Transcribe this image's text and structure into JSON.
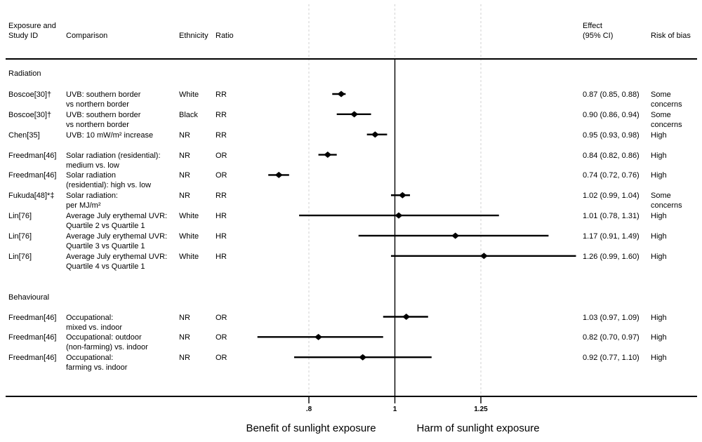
{
  "columns": {
    "study": "Exposure and\nStudy ID",
    "comparison": "Comparison",
    "ethnicity": "Ethnicity",
    "ratio": "Ratio",
    "effect": "Effect\n(95% CI)",
    "bias": "Risk of bias"
  },
  "sections": [
    {
      "name": "Radiation",
      "rows": [
        {
          "study": "Boscoe[30]†",
          "comparison": "UVB: southern border\nvs northern border",
          "ethnicity": "White",
          "ratio": "RR",
          "effect": "0.87 (0.85, 0.88)",
          "bias": "Some\nconcerns",
          "est": 0.87,
          "lo": 0.85,
          "hi": 0.88
        },
        {
          "study": "Boscoe[30]†",
          "comparison": "UVB: southern border\nvs northern border",
          "ethnicity": "Black",
          "ratio": "RR",
          "effect": "0.90 (0.86, 0.94)",
          "bias": "Some\nconcerns",
          "est": 0.9,
          "lo": 0.86,
          "hi": 0.94
        },
        {
          "study": "Chen[35]",
          "comparison": "UVB: 10 mW/m² increase",
          "ethnicity": "NR",
          "ratio": "RR",
          "effect": "0.95 (0.93, 0.98)",
          "bias": "High",
          "est": 0.95,
          "lo": 0.93,
          "hi": 0.98
        },
        {
          "study": "Freedman[46]",
          "comparison": "Solar radiation (residential):\nmedium vs. low",
          "ethnicity": "NR",
          "ratio": "OR",
          "effect": "0.84 (0.82, 0.86)",
          "bias": "High",
          "est": 0.84,
          "lo": 0.82,
          "hi": 0.86
        },
        {
          "study": "Freedman[46]",
          "comparison": "Solar radiation\n(residential): high vs. low",
          "ethnicity": "NR",
          "ratio": "OR",
          "effect": "0.74 (0.72, 0.76)",
          "bias": "High",
          "est": 0.74,
          "lo": 0.72,
          "hi": 0.76
        },
        {
          "study": "Fukuda[48]*‡",
          "comparison": "Solar radiation:\nper MJ/m²",
          "ethnicity": "NR",
          "ratio": "RR",
          "effect": "1.02 (0.99, 1.04)",
          "bias": "Some\nconcerns",
          "est": 1.02,
          "lo": 0.99,
          "hi": 1.04
        },
        {
          "study": "Lin[76]",
          "comparison": "Average July erythemal UVR:\nQuartile 2 vs Quartile 1",
          "ethnicity": "White",
          "ratio": "HR",
          "effect": "1.01 (0.78, 1.31)",
          "bias": "High",
          "est": 1.01,
          "lo": 0.78,
          "hi": 1.31
        },
        {
          "study": "Lin[76]",
          "comparison": "Average July erythemal UVR:\nQuartile 3 vs Quartile 1",
          "ethnicity": "White",
          "ratio": "HR",
          "effect": "1.17 (0.91, 1.49)",
          "bias": "High",
          "est": 1.17,
          "lo": 0.91,
          "hi": 1.49
        },
        {
          "study": "Lin[76]",
          "comparison": "Average July erythemal UVR:\nQuartile 4 vs Quartile 1",
          "ethnicity": "White",
          "ratio": "HR",
          "effect": "1.26 (0.99, 1.60)",
          "bias": "High",
          "est": 1.26,
          "lo": 0.99,
          "hi": 1.6
        }
      ]
    },
    {
      "name": "Behavioural",
      "rows": [
        {
          "study": "Freedman[46]",
          "comparison": "Occupational:\nmixed vs. indoor",
          "ethnicity": "NR",
          "ratio": "OR",
          "effect": "1.03 (0.97, 1.09)",
          "bias": "High",
          "est": 1.03,
          "lo": 0.97,
          "hi": 1.09
        },
        {
          "study": "Freedman[46]",
          "comparison": "Occupational: outdoor\n(non-farming) vs. indoor",
          "ethnicity": "NR",
          "ratio": "OR",
          "effect": "0.82 (0.70, 0.97)",
          "bias": "High",
          "est": 0.82,
          "lo": 0.7,
          "hi": 0.97
        },
        {
          "study": "Freedman[46]",
          "comparison": "Occupational:\nfarming vs. indoor",
          "ethnicity": "NR",
          "ratio": "OR",
          "effect": "0.92 (0.77, 1.10)",
          "bias": "High",
          "est": 0.92,
          "lo": 0.77,
          "hi": 1.1
        }
      ]
    }
  ],
  "axis": {
    "ticks": [
      {
        "label": ".8",
        "value": 0.8
      },
      {
        "label": "1",
        "value": 1
      },
      {
        "label": "1.25",
        "value": 1.25
      }
    ],
    "reference_value": 1,
    "benefit_label": "Benefit of sunlight exposure",
    "harm_label": "Harm of sunlight exposure"
  },
  "colors": {
    "text": "#000000",
    "grid_dash": "#d2d2d2",
    "marker": "#000000",
    "rule": "#000000"
  },
  "chart_data": {
    "type": "scatter",
    "variant": "forest-plot",
    "xscale": "log",
    "xticks": [
      0.8,
      1,
      1.25
    ],
    "reference_line": 1,
    "xlabel_left": "Benefit of sunlight exposure",
    "xlabel_right": "Harm of sunlight exposure",
    "series": [
      {
        "name": "Radiation",
        "points": [
          {
            "label": "Boscoe[30]† (White, RR)",
            "est": 0.87,
            "lo": 0.85,
            "hi": 0.88
          },
          {
            "label": "Boscoe[30]† (Black, RR)",
            "est": 0.9,
            "lo": 0.86,
            "hi": 0.94
          },
          {
            "label": "Chen[35] (NR, RR)",
            "est": 0.95,
            "lo": 0.93,
            "hi": 0.98
          },
          {
            "label": "Freedman[46] medium vs. low (OR)",
            "est": 0.84,
            "lo": 0.82,
            "hi": 0.86
          },
          {
            "label": "Freedman[46] high vs. low (OR)",
            "est": 0.74,
            "lo": 0.72,
            "hi": 0.76
          },
          {
            "label": "Fukuda[48]*‡ per MJ/m² (RR)",
            "est": 1.02,
            "lo": 0.99,
            "hi": 1.04
          },
          {
            "label": "Lin[76] Quartile 2 vs 1 (HR)",
            "est": 1.01,
            "lo": 0.78,
            "hi": 1.31
          },
          {
            "label": "Lin[76] Quartile 3 vs 1 (HR)",
            "est": 1.17,
            "lo": 0.91,
            "hi": 1.49
          },
          {
            "label": "Lin[76] Quartile 4 vs 1 (HR)",
            "est": 1.26,
            "lo": 0.99,
            "hi": 1.6
          }
        ]
      },
      {
        "name": "Behavioural",
        "points": [
          {
            "label": "Freedman[46] mixed vs. indoor (OR)",
            "est": 1.03,
            "lo": 0.97,
            "hi": 1.09
          },
          {
            "label": "Freedman[46] outdoor (non-farming) vs. indoor (OR)",
            "est": 0.82,
            "lo": 0.7,
            "hi": 0.97
          },
          {
            "label": "Freedman[46] farming vs. indoor (OR)",
            "est": 0.92,
            "lo": 0.77,
            "hi": 1.1
          }
        ]
      }
    ]
  }
}
